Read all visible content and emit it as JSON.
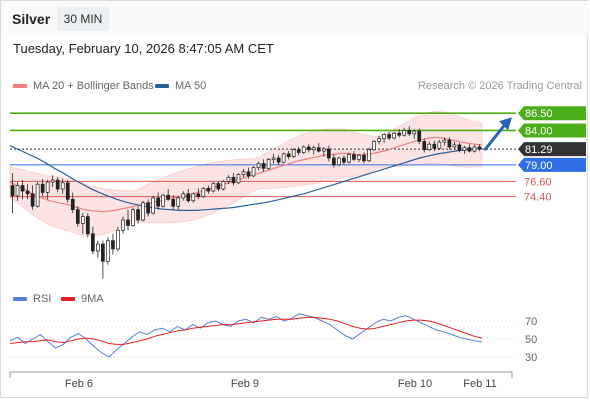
{
  "header": {
    "symbol": "Silver",
    "interval": "30 MIN",
    "datetime": "Tuesday, February 10, 2026 8:47:05 AM CET"
  },
  "legend": [
    {
      "label": "MA 20 + Bollinger Bands",
      "color": "#f08080"
    },
    {
      "label": "MA 50",
      "color": "#2d5f9a"
    }
  ],
  "credit": "Research © 2026 Trading Central",
  "rsi_legend": [
    {
      "label": "RSI",
      "color": "#5b7fd6"
    },
    {
      "label": "9MA",
      "color": "#e0201f"
    }
  ],
  "chart_data": [
    {
      "type": "candlestick",
      "title": "Silver",
      "x_ticks": [
        "Feb 6",
        "Feb 9",
        "Feb 10",
        "Feb 11"
      ],
      "price_levels": [
        {
          "value": 86.5,
          "label": "86.50",
          "kind": "resistance",
          "color": "#4caf1a"
        },
        {
          "value": 84.0,
          "label": "84.00",
          "kind": "resistance",
          "color": "#4caf1a"
        },
        {
          "value": 81.29,
          "label": "81.29",
          "kind": "last",
          "color": "#333333"
        },
        {
          "value": 79.0,
          "label": "79.00",
          "kind": "pivot",
          "color": "#2f6ee6"
        },
        {
          "value": 76.6,
          "label": "76.60",
          "kind": "support",
          "color": "#e25555"
        },
        {
          "value": 74.4,
          "label": "74.40",
          "kind": "support",
          "color": "#e25555"
        }
      ],
      "ylim": [
        62,
        89
      ],
      "series": [
        {
          "name": "MA 20 + Bollinger Bands"
        },
        {
          "name": "MA 50"
        }
      ],
      "candles": [
        [
          76.0,
          77.8,
          72.0,
          74.5
        ],
        [
          74.5,
          76.5,
          73.8,
          76.0
        ],
        [
          76.0,
          76.8,
          74.0,
          75.2
        ],
        [
          75.2,
          76.2,
          74.0,
          74.8
        ],
        [
          74.8,
          76.0,
          72.5,
          73.0
        ],
        [
          73.0,
          76.5,
          72.8,
          76.2
        ],
        [
          76.2,
          77.0,
          74.5,
          75.0
        ],
        [
          75.0,
          76.8,
          74.0,
          76.5
        ],
        [
          76.5,
          77.5,
          75.8,
          76.8
        ],
        [
          76.8,
          77.2,
          75.0,
          75.5
        ],
        [
          75.5,
          77.0,
          74.8,
          76.4
        ],
        [
          76.4,
          76.8,
          73.5,
          74.0
        ],
        [
          74.0,
          75.0,
          72.0,
          72.5
        ],
        [
          72.5,
          73.0,
          70.0,
          70.5
        ],
        [
          70.5,
          72.0,
          69.0,
          71.5
        ],
        [
          71.5,
          72.0,
          68.5,
          69.0
        ],
        [
          69.0,
          70.0,
          66.0,
          66.5
        ],
        [
          66.5,
          68.0,
          65.5,
          67.5
        ],
        [
          67.5,
          68.0,
          62.5,
          65.0
        ],
        [
          65.0,
          68.5,
          64.5,
          68.0
        ],
        [
          68.0,
          69.0,
          66.0,
          66.8
        ],
        [
          66.8,
          70.0,
          66.5,
          69.5
        ],
        [
          69.5,
          71.5,
          69.0,
          71.0
        ],
        [
          71.0,
          72.5,
          69.5,
          70.2
        ],
        [
          70.2,
          72.8,
          70.0,
          72.5
        ],
        [
          72.5,
          73.0,
          70.5,
          71.0
        ],
        [
          71.0,
          73.8,
          70.8,
          73.5
        ],
        [
          73.5,
          74.0,
          71.5,
          72.0
        ],
        [
          72.0,
          74.5,
          71.8,
          74.2
        ],
        [
          74.2,
          75.0,
          72.5,
          73.0
        ],
        [
          73.0,
          74.8,
          72.8,
          74.6
        ],
        [
          74.6,
          75.5,
          73.8,
          74.0
        ],
        [
          74.0,
          74.6,
          72.5,
          73.0
        ],
        [
          73.0,
          74.5,
          72.5,
          74.2
        ],
        [
          74.2,
          75.2,
          73.8,
          74.8
        ],
        [
          74.8,
          75.5,
          73.5,
          73.8
        ],
        [
          73.8,
          75.0,
          73.5,
          74.8
        ],
        [
          74.8,
          75.6,
          74.0,
          74.4
        ],
        [
          74.4,
          75.8,
          74.2,
          75.6
        ],
        [
          75.6,
          76.0,
          74.8,
          75.2
        ],
        [
          75.2,
          76.5,
          75.0,
          76.3
        ],
        [
          76.3,
          76.6,
          75.2,
          75.5
        ],
        [
          75.5,
          76.8,
          75.3,
          76.6
        ],
        [
          76.6,
          77.5,
          76.2,
          77.2
        ],
        [
          77.2,
          77.8,
          76.0,
          76.4
        ],
        [
          76.4,
          77.8,
          76.2,
          77.6
        ],
        [
          77.6,
          78.4,
          77.2,
          78.0
        ],
        [
          78.0,
          78.6,
          77.0,
          77.4
        ],
        [
          77.4,
          78.8,
          77.2,
          78.6
        ],
        [
          78.6,
          79.5,
          78.2,
          79.2
        ],
        [
          79.2,
          79.8,
          78.0,
          78.5
        ],
        [
          78.5,
          80.0,
          78.3,
          79.8
        ],
        [
          79.8,
          80.6,
          79.2,
          80.0
        ],
        [
          80.0,
          80.4,
          79.0,
          79.4
        ],
        [
          79.4,
          80.8,
          79.2,
          80.6
        ],
        [
          80.6,
          81.0,
          79.8,
          80.2
        ],
        [
          80.2,
          81.4,
          80.0,
          81.2
        ],
        [
          81.2,
          81.6,
          80.4,
          80.8
        ],
        [
          80.8,
          81.8,
          80.6,
          81.6
        ],
        [
          81.6,
          82.0,
          80.8,
          81.2
        ],
        [
          81.2,
          81.8,
          80.5,
          81.5
        ],
        [
          81.5,
          82.2,
          80.8,
          81.0
        ],
        [
          81.0,
          81.6,
          80.2,
          81.3
        ],
        [
          81.3,
          81.8,
          79.5,
          80.0
        ],
        [
          80.0,
          80.6,
          78.6,
          79.0
        ],
        [
          79.0,
          80.2,
          78.8,
          80.0
        ],
        [
          80.0,
          80.4,
          79.0,
          79.4
        ],
        [
          79.4,
          80.8,
          79.2,
          80.5
        ],
        [
          80.5,
          81.0,
          79.6,
          79.8
        ],
        [
          79.8,
          80.6,
          79.4,
          80.4
        ],
        [
          80.4,
          80.8,
          79.2,
          79.6
        ],
        [
          79.6,
          81.5,
          79.4,
          81.2
        ],
        [
          81.2,
          82.6,
          81.0,
          82.4
        ],
        [
          82.4,
          83.2,
          82.0,
          82.8
        ],
        [
          82.8,
          83.6,
          82.2,
          83.4
        ],
        [
          83.4,
          83.8,
          82.6,
          82.9
        ],
        [
          82.9,
          83.8,
          82.7,
          83.6
        ],
        [
          83.6,
          84.2,
          83.0,
          83.3
        ],
        [
          83.3,
          84.4,
          83.1,
          84.0
        ],
        [
          84.0,
          84.6,
          83.2,
          83.5
        ],
        [
          83.5,
          84.2,
          82.8,
          83.9
        ],
        [
          83.9,
          84.3,
          82.0,
          82.4
        ],
        [
          82.4,
          82.8,
          80.8,
          81.2
        ],
        [
          81.2,
          82.4,
          81.0,
          82.0
        ],
        [
          82.0,
          82.5,
          81.0,
          81.4
        ],
        [
          81.4,
          82.6,
          81.2,
          82.3
        ],
        [
          82.3,
          83.0,
          81.8,
          82.6
        ],
        [
          82.6,
          83.0,
          81.2,
          81.6
        ],
        [
          81.6,
          82.4,
          81.2,
          81.9
        ],
        [
          81.9,
          82.2,
          80.8,
          81.1
        ],
        [
          81.1,
          81.8,
          80.6,
          81.5
        ],
        [
          81.5,
          82.0,
          80.8,
          81.0
        ],
        [
          81.0,
          81.9,
          80.8,
          81.6
        ],
        [
          81.6,
          82.0,
          81.0,
          81.29
        ]
      ],
      "ma20": [
        76.5,
        76.0,
        75.6,
        75.0,
        74.6,
        74.2,
        73.8,
        73.6,
        73.4,
        73.2,
        72.9,
        72.6,
        72.4,
        72.3,
        72.2,
        72.3,
        72.4,
        72.6,
        72.8,
        73.0,
        73.2,
        73.4,
        73.6,
        73.8,
        74.0,
        74.2,
        74.4,
        74.6,
        74.8,
        75.1,
        75.4,
        75.7,
        76.0,
        76.3,
        76.6,
        76.9,
        77.2,
        77.5,
        77.8,
        78.1,
        78.4,
        78.7,
        79.0,
        79.3,
        79.6,
        79.8,
        80.0,
        80.2,
        80.4,
        80.5,
        80.6,
        80.7,
        80.6,
        80.5,
        80.5,
        80.6,
        80.8,
        81.0,
        81.3,
        81.6,
        81.9,
        82.2,
        82.5,
        82.7,
        82.9,
        83.0,
        82.9,
        82.7,
        82.5,
        82.3,
        82.1,
        82.0,
        81.9
      ],
      "ma50": [
        81.8,
        81.2,
        80.6,
        80.0,
        79.3,
        78.5,
        77.8,
        77.0,
        76.3,
        75.6,
        75.0,
        74.5,
        74.0,
        73.6,
        73.3,
        73.0,
        72.8,
        72.6,
        72.5,
        72.4,
        72.4,
        72.4,
        72.5,
        72.6,
        72.7,
        72.8,
        73.0,
        73.2,
        73.4,
        73.6,
        73.9,
        74.2,
        74.5,
        74.8,
        75.2,
        75.6,
        76.0,
        76.4,
        76.8,
        77.2,
        77.6,
        78.0,
        78.4,
        78.8,
        79.2,
        79.6,
        80.0,
        80.3,
        80.6,
        80.8,
        81.0,
        81.2,
        81.3,
        81.4
      ],
      "rsi": [
        48,
        52,
        45,
        50,
        55,
        47,
        40,
        44,
        52,
        56,
        50,
        42,
        35,
        30,
        38,
        45,
        52,
        58,
        55,
        60,
        62,
        58,
        64,
        60,
        66,
        62,
        68,
        70,
        66,
        64,
        70,
        72,
        68,
        74,
        72,
        75,
        70,
        73,
        78,
        76,
        74,
        70,
        66,
        60,
        54,
        50,
        56,
        62,
        68,
        72,
        70,
        74,
        76,
        72,
        68,
        64,
        60,
        58,
        55,
        52,
        50,
        48,
        47
      ],
      "rsi_ma": [
        45,
        46,
        47,
        47,
        48,
        49,
        47,
        46,
        48,
        50,
        51,
        50,
        48,
        45,
        44,
        44,
        46,
        48,
        50,
        53,
        55,
        57,
        59,
        60,
        62,
        63,
        64,
        65,
        66,
        66,
        67,
        68,
        69,
        70,
        71,
        72,
        72,
        72,
        73,
        74,
        74,
        73,
        72,
        70,
        67,
        64,
        62,
        61,
        62,
        64,
        66,
        68,
        70,
        71,
        71,
        70,
        68,
        65,
        62,
        59,
        56,
        53,
        51
      ],
      "rsi_levels": [
        70,
        50,
        30
      ]
    }
  ]
}
